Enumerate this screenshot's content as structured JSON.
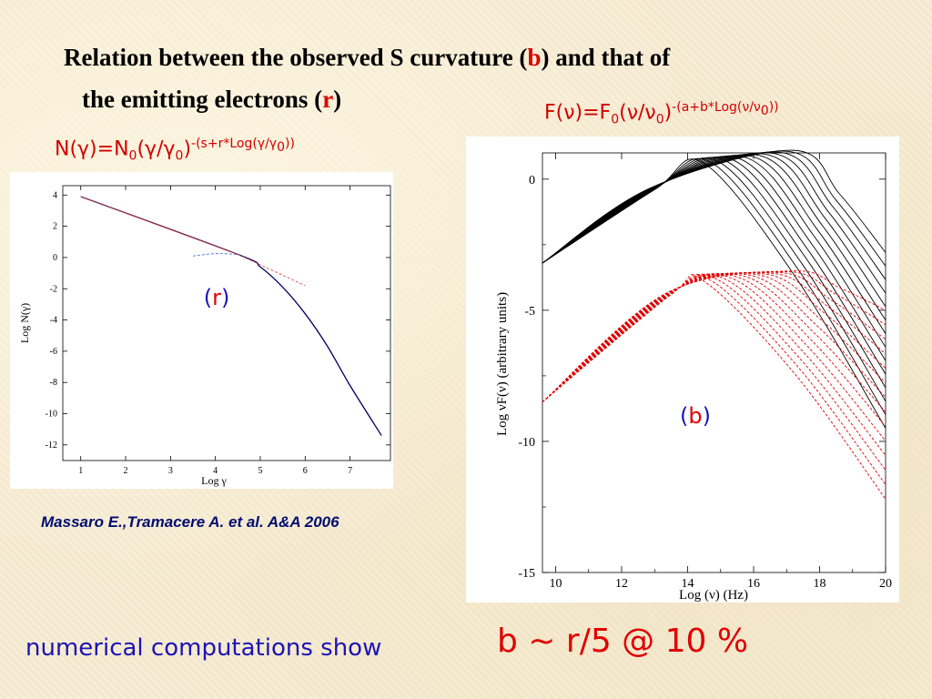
{
  "slide": {
    "title_line1_a": "Relation between the observed S curvature (",
    "title_line1_b": "b",
    "title_line1_c": ") and that of",
    "title_line2_a": "the emitting electrons (",
    "title_line2_b": "r",
    "title_line2_c": ")",
    "citation": "Massaro E.,Tramacere A. et al. A&A 2006",
    "conclusion_left": "numerical computations show",
    "conclusion_right": "b ~ r/5 @ 10 %",
    "formula_left": {
      "lhs": "N(γ)=N",
      "sub0": "0",
      "mid": "(γ/γ",
      "sub1": "0",
      "close": ")",
      "exp": "-(s+r*Log(γ/γ",
      "exp_sub": "0",
      "exp_close": "))"
    },
    "formula_right": {
      "lhs": "F(ν)=F",
      "sub0": "0",
      "mid": "(ν/ν",
      "sub1": "0",
      "close": ")",
      "exp": "-(a+b*Log(ν/ν",
      "exp_sub": "0",
      "exp_close": "))"
    },
    "colors": {
      "title": "#000000",
      "accent_red": "#e00000",
      "accent_blue": "#1c14b4",
      "citation": "#000d70"
    }
  },
  "chart_data": [
    {
      "type": "line",
      "panel_label_open": "(",
      "panel_label": "r",
      "panel_label_close": ")",
      "xlabel": "Log  γ",
      "ylabel": "Log  N(γ)",
      "xlim": [
        0.6,
        7.9
      ],
      "ylim": [
        -13,
        4.6
      ],
      "xticks": [
        "1",
        "2",
        "3",
        "4",
        "5",
        "6",
        "7"
      ],
      "yticks": [
        "4",
        "2",
        "0",
        "-2",
        "-4",
        "-6",
        "-8",
        "-10",
        "-12"
      ],
      "series": [
        {
          "style": "solid",
          "color": "#000060",
          "x": [
            1.0,
            4.5,
            5.0,
            5.5,
            6.0,
            6.5,
            7.0,
            7.7
          ],
          "y": [
            3.9,
            0.2,
            -0.6,
            -1.9,
            -3.6,
            -5.7,
            -8.2,
            -11.4
          ]
        },
        {
          "style": "solid-thin",
          "color": "#c84040",
          "x": [
            1.0,
            4.5
          ],
          "y": [
            3.9,
            0.2
          ]
        },
        {
          "style": "dashed",
          "color": "#e05050",
          "x": [
            4.5,
            6.0
          ],
          "y": [
            0.2,
            -1.8
          ]
        },
        {
          "style": "dashed",
          "color": "#5070e0",
          "x": [
            3.5,
            4.0,
            4.5
          ],
          "y": [
            0.1,
            0.25,
            0.2
          ]
        }
      ]
    },
    {
      "type": "line",
      "panel_label_open": "(",
      "panel_label": "b",
      "panel_label_close": ")",
      "xlabel": "Log (ν)  (Hz)",
      "ylabel": "Log νF(ν)     (arbitrary units)",
      "xlim": [
        9.6,
        20
      ],
      "ylim": [
        -15,
        1.0
      ],
      "xticks": [
        "10",
        "12",
        "14",
        "16",
        "18",
        "20"
      ],
      "yticks": [
        "0",
        "-5",
        "-10",
        "-15"
      ],
      "families": [
        {
          "name": "solid family",
          "color": "#000000",
          "style": "solid",
          "count": 14,
          "start": [
            9.6,
            -3.2
          ],
          "common_point": [
            13.0,
            -0.4
          ],
          "peak_x_range": [
            14.5,
            17.2
          ],
          "peak_y_range": [
            0.6,
            1.1
          ],
          "end_y_range": [
            -2.8,
            -9.5
          ]
        },
        {
          "name": "dashed family",
          "color": "#e00000",
          "style": "dashed",
          "count": 14,
          "start": [
            9.6,
            -8.5
          ],
          "common_point": [
            13.5,
            -4.4
          ],
          "peak_x_range": [
            14.5,
            17.2
          ],
          "peak_y_range": [
            -3.9,
            -3.5
          ],
          "end_y_range": [
            -5.0,
            -12.2
          ]
        }
      ]
    }
  ]
}
